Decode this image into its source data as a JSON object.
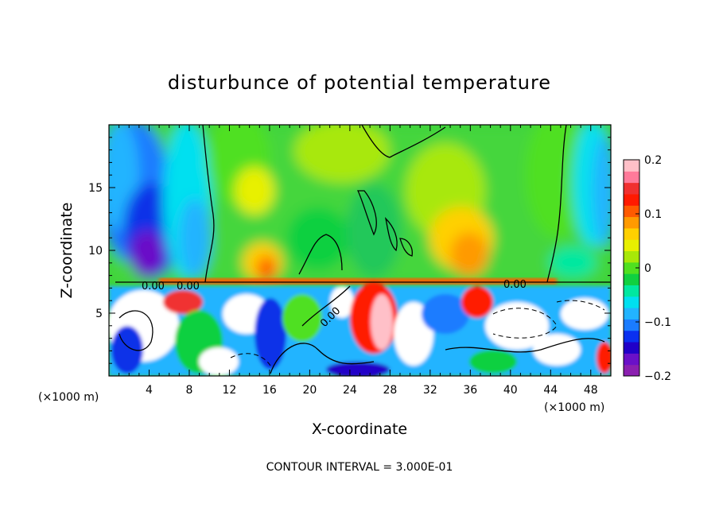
{
  "chart_data": {
    "type": "heatmap",
    "title": "disturbunce of potential temperature",
    "xlabel": "X-coordinate",
    "ylabel": "Z-coordinate",
    "x_unit_left": "(×1000 m)",
    "x_unit_right": "(×1000 m)",
    "footer": "CONTOUR INTERVAL = 3.000E-01",
    "xlim": [
      0,
      50
    ],
    "ylim": [
      0,
      20
    ],
    "xticks": [
      4,
      8,
      12,
      16,
      20,
      24,
      28,
      32,
      36,
      40,
      44,
      48
    ],
    "yticks": [
      5,
      10,
      15
    ],
    "colorbar": {
      "range": [
        -0.2,
        0.2
      ],
      "ticks": [
        {
          "value": 0.2,
          "label": "0.2"
        },
        {
          "value": 0.1,
          "label": "0.1"
        },
        {
          "value": 0.0,
          "label": "0"
        },
        {
          "value": -0.1,
          "label": "−0.1"
        },
        {
          "value": -0.2,
          "label": "−0.2"
        }
      ],
      "colors": [
        "#8b1fb0",
        "#6a10c8",
        "#2000c8",
        "#0a30f0",
        "#1a7cff",
        "#22b4ff",
        "#00e0f0",
        "#00e8a0",
        "#10d040",
        "#50e020",
        "#a8e808",
        "#e8f000",
        "#ffd000",
        "#ff9a00",
        "#ff5a00",
        "#ff1a00",
        "#f03030",
        "#ff7a9a",
        "#ffc0c8"
      ]
    },
    "contour_labels": [
      "0.00",
      "0.00",
      "0.00",
      "0.00"
    ]
  }
}
